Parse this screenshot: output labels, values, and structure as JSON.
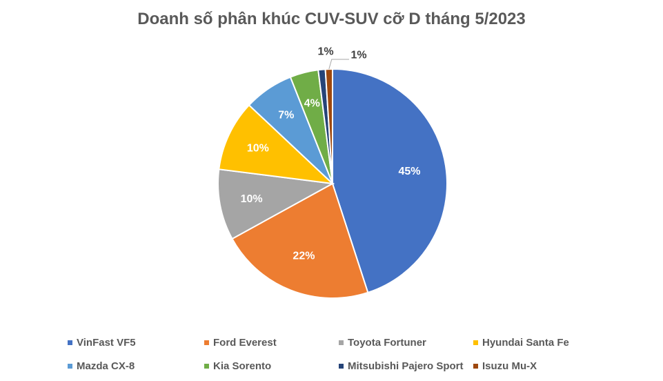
{
  "chart_data": {
    "type": "pie",
    "title": "Doanh số phân khúc CUV-SUV cỡ D tháng 5/2023",
    "categories": [
      "VinFast VF5",
      "Ford Everest",
      "Toyota Fortuner",
      "Hyundai Santa Fe",
      "Mazda CX-8",
      "Kia Sorento",
      "Mitsubishi Pajero Sport",
      "Isuzu Mu-X"
    ],
    "values": [
      45,
      22,
      10,
      10,
      7,
      4,
      1,
      1
    ],
    "labels": [
      "45%",
      "22%",
      "10%",
      "10%",
      "7%",
      "4%",
      "1%",
      "1%"
    ],
    "colors": [
      "#4472C4",
      "#ED7D31",
      "#A5A5A5",
      "#FFC000",
      "#5B9BD5",
      "#70AD47",
      "#264478",
      "#9E480E"
    ],
    "legend_position": "bottom"
  }
}
